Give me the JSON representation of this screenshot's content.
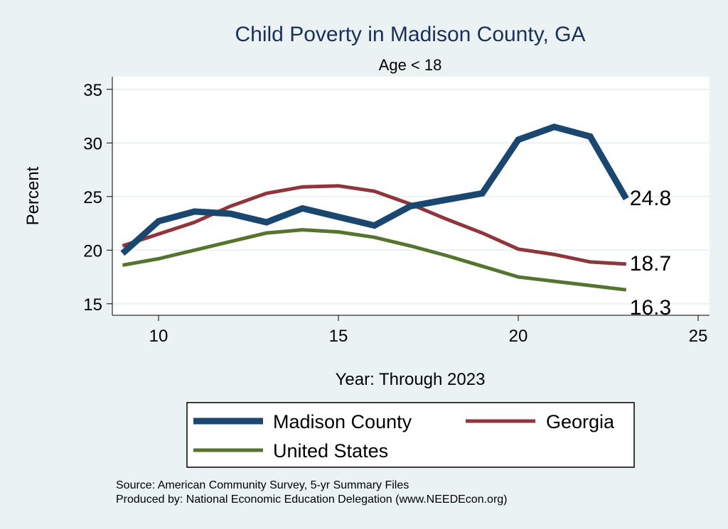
{
  "chart_data": {
    "type": "line",
    "title": "Child Poverty in Madison County, GA",
    "subtitle": "Age < 18",
    "xlabel": "Year: Through 2023",
    "ylabel": "Percent",
    "xlim": [
      8.7,
      25.3
    ],
    "ylim": [
      14.3,
      36
    ],
    "xticks": [
      10,
      15,
      20,
      25
    ],
    "yticks": [
      15,
      20,
      25,
      30,
      35
    ],
    "grid": true,
    "legend_position": "bottom",
    "x": [
      9,
      10,
      11,
      12,
      13,
      14,
      15,
      16,
      17,
      18,
      19,
      20,
      21,
      22,
      23
    ],
    "series": [
      {
        "name": "Madison County",
        "color": "#1a476f",
        "width": 9,
        "values": [
          19.7,
          22.7,
          23.6,
          23.4,
          22.6,
          23.9,
          23.1,
          22.3,
          24.1,
          24.7,
          25.3,
          30.3,
          31.5,
          30.6,
          24.8
        ],
        "end_label": "24.8"
      },
      {
        "name": "Georgia",
        "color": "#90353b",
        "width": 5,
        "values": [
          20.4,
          21.5,
          22.6,
          24.1,
          25.3,
          25.9,
          26.0,
          25.5,
          24.3,
          22.9,
          21.6,
          20.1,
          19.6,
          18.9,
          18.7
        ],
        "end_label": "18.7"
      },
      {
        "name": "United States",
        "color": "#55752f",
        "width": 5,
        "values": [
          18.6,
          19.2,
          20.0,
          20.8,
          21.6,
          21.9,
          21.7,
          21.2,
          20.4,
          19.5,
          18.5,
          17.5,
          17.1,
          16.7,
          16.3
        ],
        "end_label": "16.3"
      }
    ]
  },
  "notes": {
    "source": "Source: American Community Survey, 5-yr Summary Files",
    "produced": "Produced by: National Economic Education Delegation (www.NEEDEcon.org)"
  }
}
